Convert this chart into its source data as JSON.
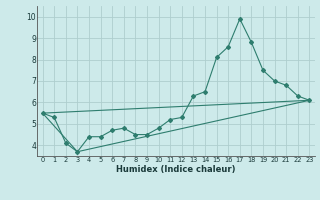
{
  "title": "",
  "xlabel": "Humidex (Indice chaleur)",
  "bg_color": "#cdeaea",
  "grid_color": "#aecece",
  "line_color": "#2e7d6e",
  "xlim": [
    -0.5,
    23.5
  ],
  "ylim": [
    3.5,
    10.5
  ],
  "xticks": [
    0,
    1,
    2,
    3,
    4,
    5,
    6,
    7,
    8,
    9,
    10,
    11,
    12,
    13,
    14,
    15,
    16,
    17,
    18,
    19,
    20,
    21,
    22,
    23
  ],
  "yticks": [
    4,
    5,
    6,
    7,
    8,
    9,
    10
  ],
  "series1_x": [
    0,
    1,
    2,
    3,
    4,
    5,
    6,
    7,
    8,
    9,
    10,
    11,
    12,
    13,
    14,
    15,
    16,
    17,
    18,
    19,
    20,
    21,
    22,
    23
  ],
  "series1_y": [
    5.5,
    5.3,
    4.1,
    3.7,
    4.4,
    4.4,
    4.7,
    4.8,
    4.5,
    4.5,
    4.8,
    5.2,
    5.3,
    6.3,
    6.5,
    8.1,
    8.6,
    9.9,
    8.8,
    7.5,
    7.0,
    6.8,
    6.3,
    6.1
  ],
  "series2_x": [
    0,
    23
  ],
  "series2_y": [
    5.5,
    6.1
  ],
  "series3_x": [
    0,
    3,
    23
  ],
  "series3_y": [
    5.5,
    3.7,
    6.1
  ]
}
